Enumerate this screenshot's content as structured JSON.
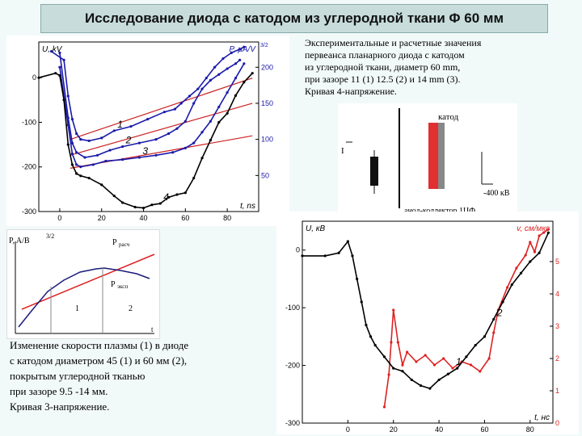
{
  "title": "Исследование диода с катодом из углеродной ткани Φ 60 мм",
  "caption_top": [
    "Экспериментальные и расчетные значения",
    "первеанса планарного диода с катодом",
    "из углеродной ткани, диаметр 60 mm,",
    "при зазоре 11 (1) 12.5 (2) и 14 mm (3).",
    "Кривая 4-напряжение."
  ],
  "caption_bottom": [
    "Изменение скорости плазмы (1) в диоде",
    "с катодом диаметром 45 (1) и 60  мм (2),",
    "покрытым углеродной тканью",
    "при зазоре 9.5 -14 мм.",
    "Кривая 3-напряжение."
  ],
  "schematic": {
    "cathode_label": "катод",
    "voltage_label": "-400 кВ",
    "bottom_label": "анод-коллектор 1ЦФ",
    "arrow_label": "I"
  },
  "sketch": {
    "ylabel": "P, A/B",
    "ylabel_exp": "3/2",
    "calc_label": "P",
    "calc_sub": "расч",
    "exp_label": "P",
    "exp_sub": "эксп",
    "region1": "1",
    "region2": "2",
    "xlabel": "t"
  },
  "chart_data": [
    {
      "type": "line",
      "ylabel_left": "U, kV",
      "ylabel_right": "P, μA/V",
      "ylabel_right_exp": "3/2",
      "xlabel": "t, ns",
      "xlim": [
        -10,
        95
      ],
      "ylim_left": [
        -300,
        80
      ],
      "ylim_right": [
        0,
        235
      ],
      "xticks": [
        0,
        20,
        40,
        60,
        80
      ],
      "yticks_left": [
        0,
        -100,
        -200,
        -300
      ],
      "yticks_right": [
        50,
        100,
        150,
        200
      ],
      "colors": {
        "perveance": "#1a1aaa",
        "voltage": "#000000",
        "fit": "#cc2222"
      },
      "series": [
        {
          "name": "1",
          "axis": "right",
          "x": [
            -4,
            2,
            4,
            6,
            8,
            10,
            14,
            20,
            26,
            34,
            42,
            50,
            55,
            58,
            62,
            66,
            70,
            74,
            78,
            82,
            86,
            88
          ],
          "y": [
            222,
            210,
            160,
            128,
            108,
            100,
            98,
            102,
            112,
            118,
            128,
            138,
            142,
            150,
            160,
            170,
            185,
            200,
            212,
            220,
            225,
            228
          ]
        },
        {
          "name": "2",
          "axis": "right",
          "x": [
            0,
            4,
            6,
            8,
            12,
            18,
            24,
            30,
            38,
            46,
            52,
            56,
            60,
            64,
            68,
            72,
            76,
            80,
            84,
            86
          ],
          "y": [
            220,
            130,
            95,
            82,
            75,
            78,
            85,
            90,
            95,
            100,
            108,
            115,
            125,
            150,
            170,
            182,
            190,
            198,
            205,
            210
          ]
        },
        {
          "name": "3",
          "axis": "right",
          "x": [
            0,
            4,
            6,
            8,
            10,
            16,
            22,
            30,
            38,
            46,
            54,
            60,
            64,
            68,
            72,
            76,
            80,
            84,
            88
          ],
          "y": [
            200,
            120,
            80,
            65,
            62,
            65,
            70,
            72,
            75,
            78,
            82,
            88,
            95,
            110,
            125,
            145,
            165,
            185,
            205
          ]
        },
        {
          "name": "4",
          "axis": "left",
          "x": [
            -10,
            -2,
            0,
            2,
            4,
            6,
            8,
            10,
            14,
            20,
            26,
            30,
            36,
            40,
            44,
            48,
            52,
            56,
            60,
            64,
            68,
            72,
            76,
            80,
            84,
            88,
            92
          ],
          "y": [
            0,
            10,
            5,
            -50,
            -150,
            -195,
            -215,
            -220,
            -225,
            -240,
            -265,
            -280,
            -290,
            -292,
            -285,
            -282,
            -268,
            -262,
            -258,
            -225,
            -180,
            -140,
            -100,
            -80,
            -40,
            -10,
            10
          ]
        }
      ],
      "fits": [
        {
          "x": [
            5,
            92
          ],
          "y": [
            100,
            185
          ],
          "axis": "right"
        },
        {
          "x": [
            5,
            92
          ],
          "y": [
            78,
            150
          ],
          "axis": "right"
        },
        {
          "x": [
            5,
            92
          ],
          "y": [
            60,
            105
          ],
          "axis": "right"
        }
      ]
    },
    {
      "type": "line",
      "ylabel_left": "U, кВ",
      "ylabel_right": "v, см/мкс",
      "xlabel": "t, нс",
      "xlim": [
        -20,
        90
      ],
      "ylim_left": [
        -300,
        50
      ],
      "ylim_right": [
        0,
        6.25
      ],
      "xticks": [
        0,
        20,
        40,
        60,
        80
      ],
      "yticks_left": [
        0,
        -100,
        -200,
        -300
      ],
      "yticks_right": [
        0,
        1,
        2,
        3,
        4,
        5
      ],
      "colors": {
        "velocity": "#dd2222",
        "voltage": "#000000"
      },
      "series": [
        {
          "name": "1",
          "axis": "right",
          "x": [
            16,
            18,
            19,
            20,
            22,
            24,
            26,
            30,
            34,
            38,
            42,
            46,
            50,
            54,
            58,
            62,
            64,
            66,
            70,
            74,
            78,
            80,
            82,
            84,
            86,
            88
          ],
          "y": [
            0.5,
            1.5,
            2.5,
            3.5,
            2.5,
            1.8,
            2.2,
            1.9,
            2.1,
            1.8,
            2.0,
            1.7,
            1.9,
            1.8,
            1.6,
            2.0,
            2.8,
            3.5,
            4.2,
            4.8,
            5.2,
            5.6,
            5.3,
            5.8,
            5.9,
            6.0
          ]
        },
        {
          "name": "2",
          "axis": "left",
          "x": [
            -20,
            -10,
            -4,
            0,
            2,
            4,
            6,
            8,
            10,
            12,
            16,
            20,
            24,
            28,
            32,
            36,
            40,
            44,
            48,
            52,
            56,
            60,
            64,
            68,
            72,
            76,
            80,
            84,
            88
          ],
          "y": [
            -10,
            -10,
            -5,
            15,
            -10,
            -50,
            -90,
            -130,
            -150,
            -165,
            -185,
            -205,
            -210,
            -225,
            -235,
            -240,
            -225,
            -215,
            -205,
            -185,
            -165,
            -150,
            -120,
            -90,
            -60,
            -40,
            -20,
            -5,
            30
          ]
        }
      ]
    }
  ]
}
